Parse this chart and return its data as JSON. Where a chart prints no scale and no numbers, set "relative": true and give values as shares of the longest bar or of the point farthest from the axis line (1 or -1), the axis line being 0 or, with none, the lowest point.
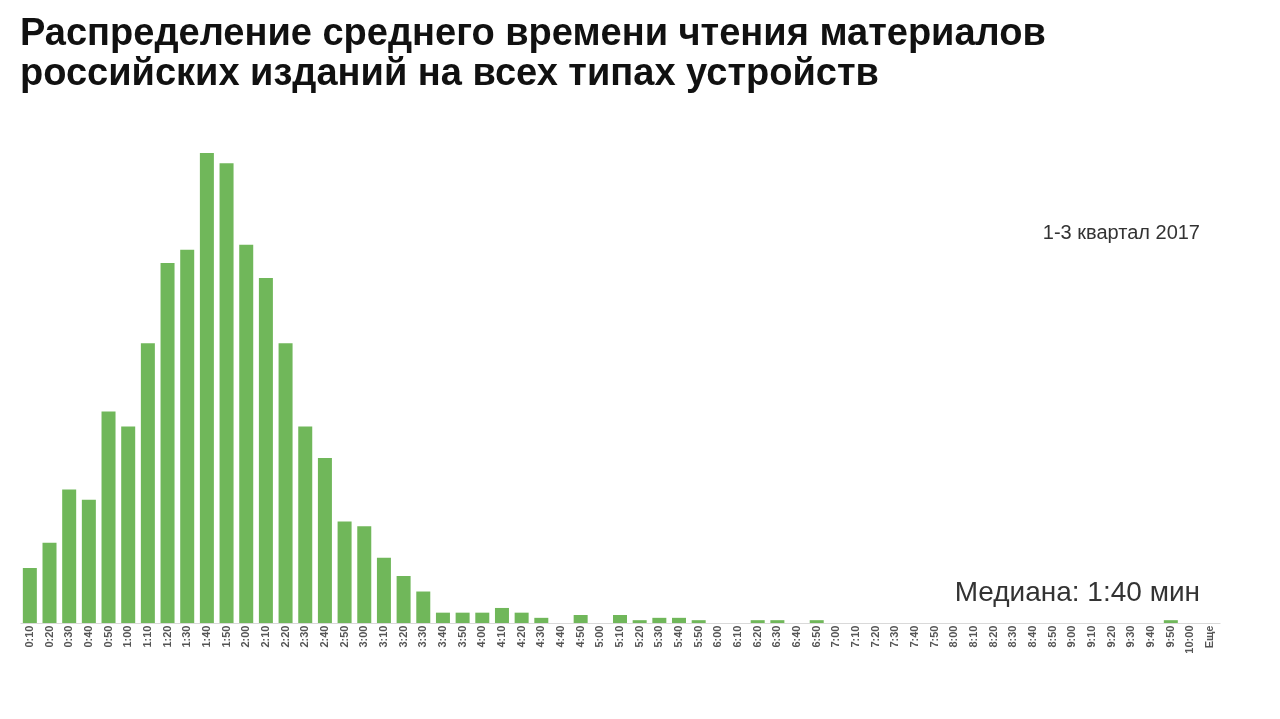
{
  "chart_data": {
    "type": "bar",
    "title": "Распределение среднего времени чтения материалов\nроссийских изданий на всех типах устройств",
    "categories": [
      "0:10",
      "0:20",
      "0:30",
      "0:40",
      "0:50",
      "1:00",
      "1:10",
      "1:20",
      "1:30",
      "1:40",
      "1:50",
      "2:00",
      "2:10",
      "2:20",
      "2:30",
      "2:40",
      "2:50",
      "3:00",
      "3:10",
      "3:20",
      "3:30",
      "3:40",
      "3:50",
      "4:00",
      "4:10",
      "4:20",
      "4:30",
      "4:40",
      "4:50",
      "5:00",
      "5:10",
      "5:20",
      "5:30",
      "5:40",
      "5:50",
      "6:00",
      "6:10",
      "6:20",
      "6:30",
      "6:40",
      "6:50",
      "7:00",
      "7:10",
      "7:20",
      "7:30",
      "7:40",
      "7:50",
      "8:00",
      "8:10",
      "8:20",
      "8:30",
      "8:40",
      "8:50",
      "9:00",
      "9:10",
      "9:20",
      "9:30",
      "9:40",
      "9:50",
      "10:00",
      "Еще"
    ],
    "values": [
      0.117,
      0.171,
      0.284,
      0.262,
      0.45,
      0.418,
      0.595,
      0.766,
      0.794,
      1,
      0.978,
      0.805,
      0.734,
      0.595,
      0.418,
      0.351,
      0.216,
      0.206,
      0.139,
      0.1,
      0.067,
      0.022,
      0.022,
      0.022,
      0.032,
      0.022,
      0.011,
      0,
      0.017,
      0,
      0.017,
      0.006,
      0.011,
      0.011,
      0.006,
      0,
      0,
      0.006,
      0.006,
      0,
      0.006,
      0,
      0,
      0,
      0,
      0,
      0,
      0,
      0,
      0,
      0,
      0,
      0,
      0,
      0,
      0,
      0,
      0,
      0.006,
      0,
      0
    ],
    "relative": true,
    "color": "#70b75a",
    "grid": false,
    "annotations": [
      "1-3 квартал 2017",
      "Медиана: 1:40 мин"
    ]
  }
}
